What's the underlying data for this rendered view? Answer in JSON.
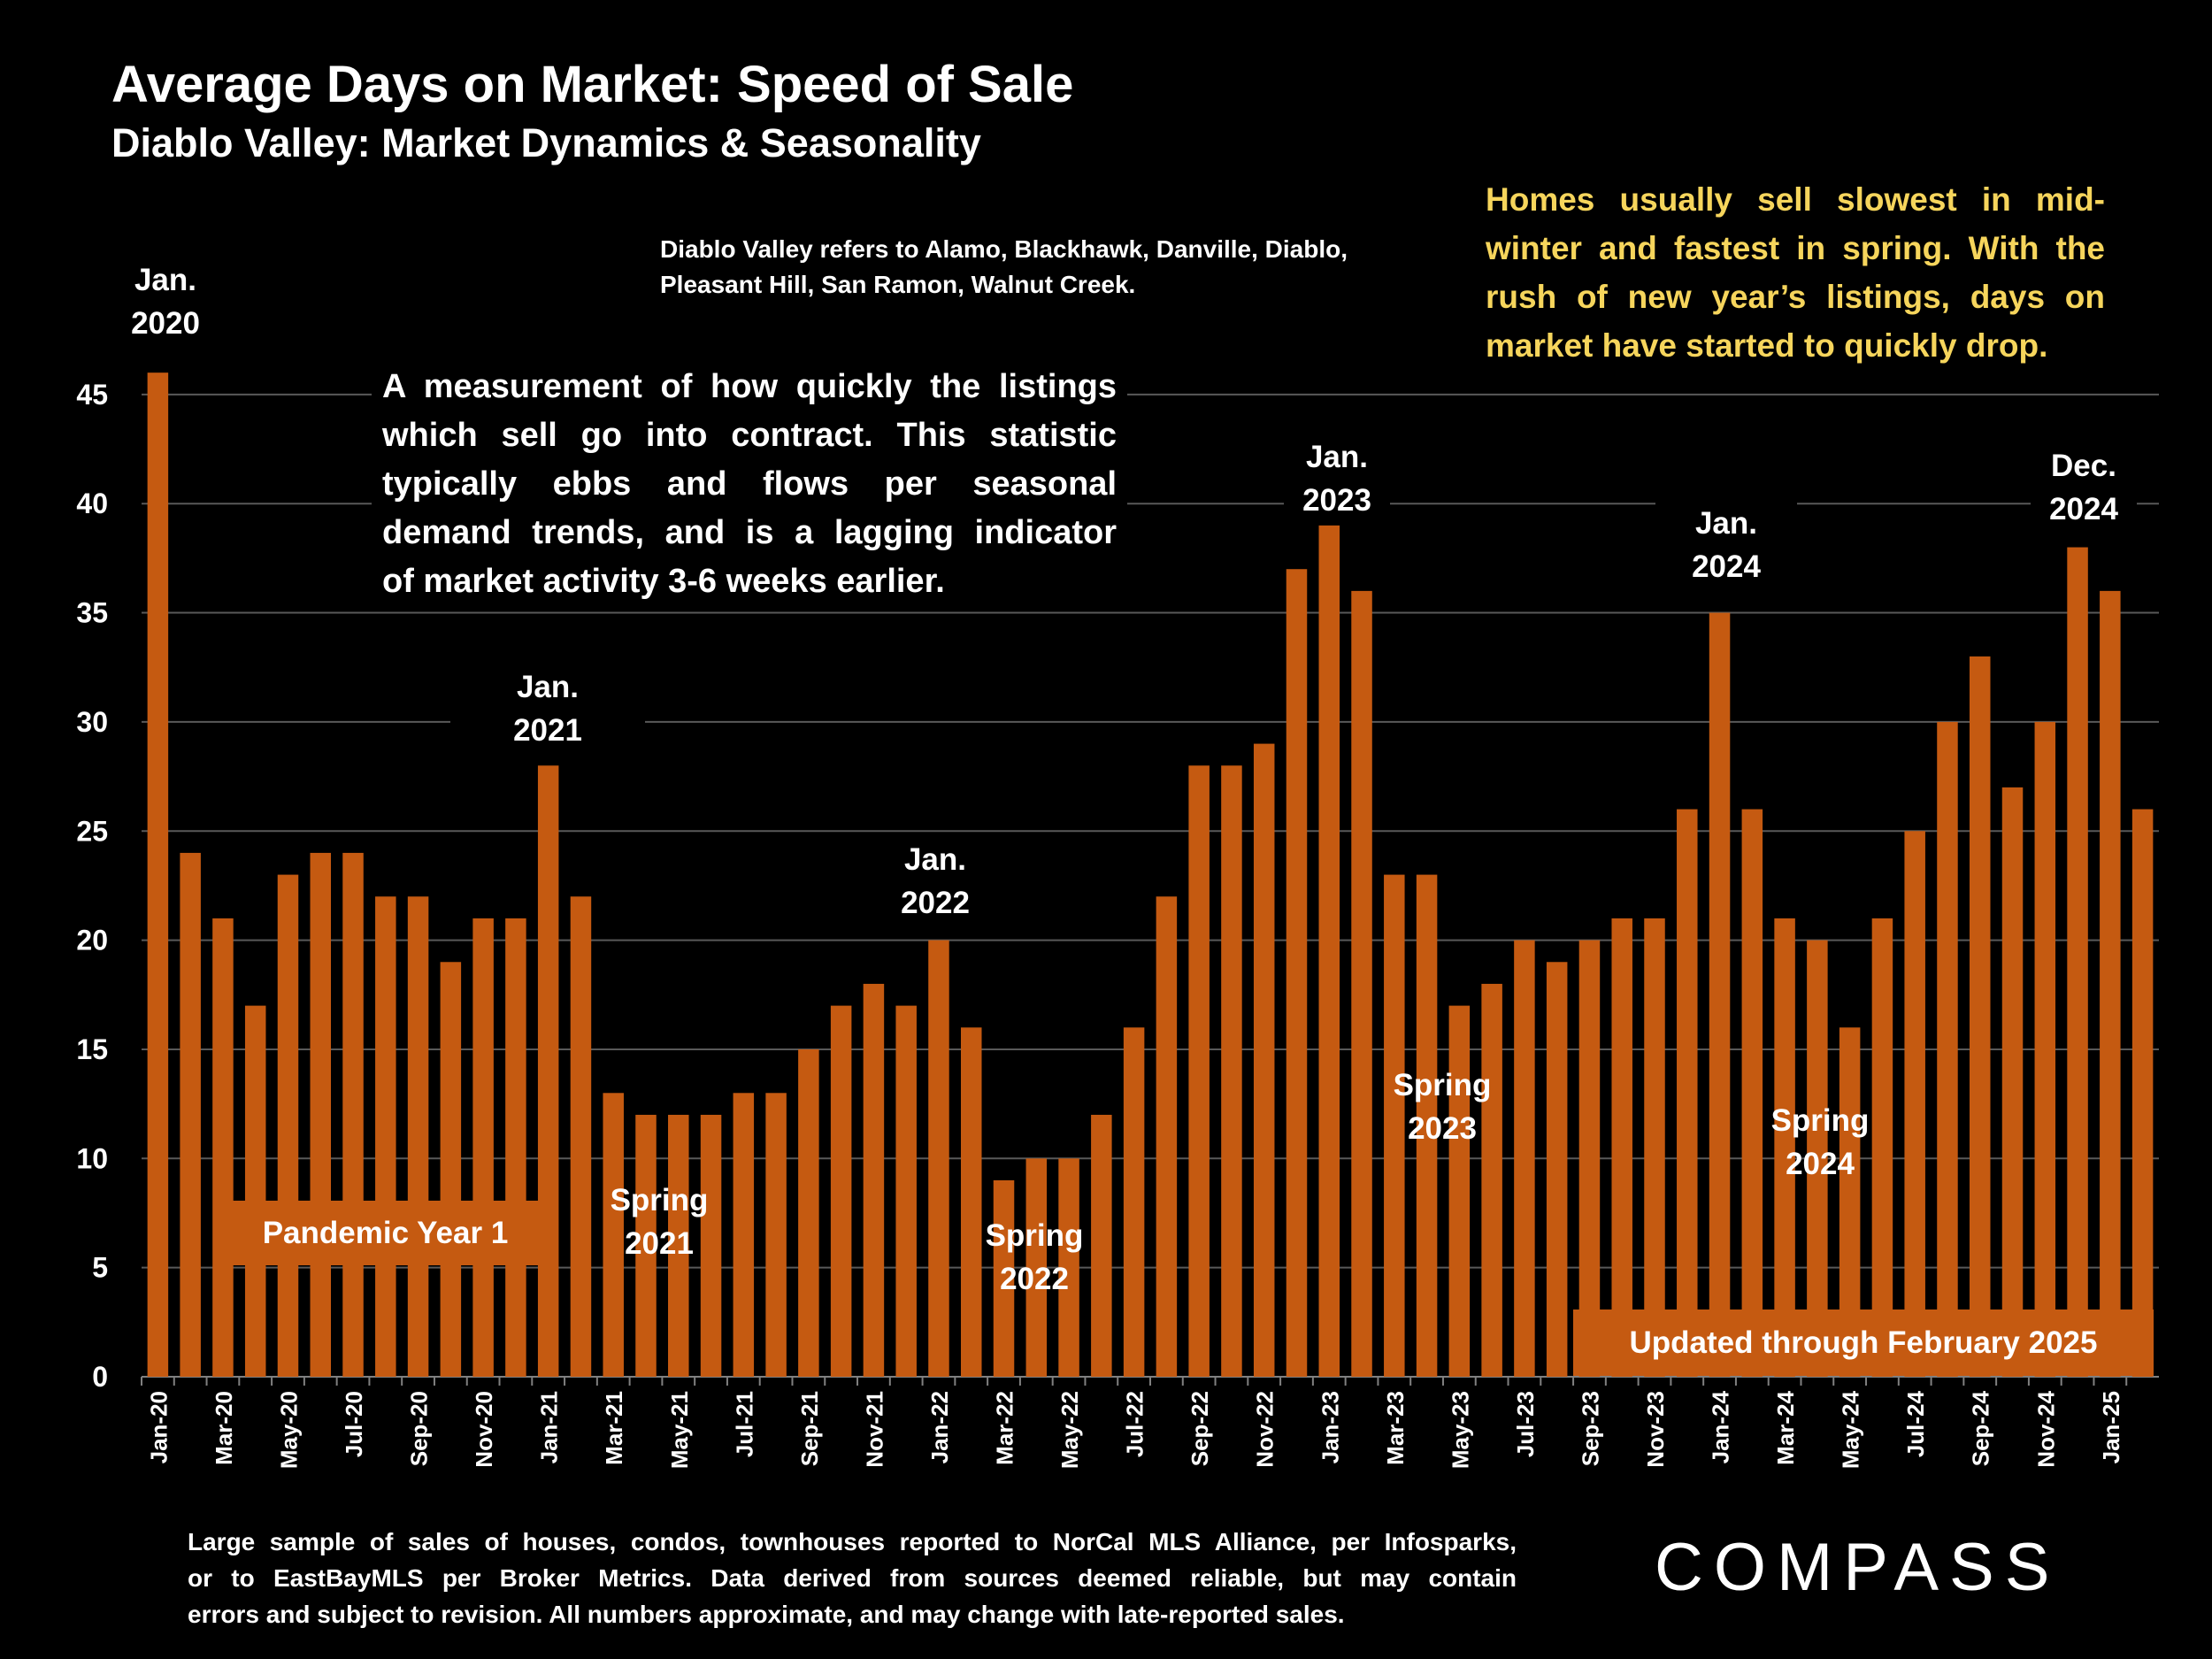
{
  "header": {
    "title": "Average Days on Market:  Speed of Sale",
    "subtitle": "Diablo Valley: Market Dynamics & Seasonality"
  },
  "note": "Diablo Valley refers to Alamo, Blackhawk, Danville, Diablo, Pleasant Hill, San Ramon, Walnut Creek.",
  "callout": [
    "Homes usually sell slowest in mid-",
    "winter and fastest in spring. With the",
    "rush of new year’s listings, days on",
    "market have started to quickly drop."
  ],
  "description": [
    "A measurement of how quickly the listings",
    "which sell go into contract. This statistic",
    "typically ebbs and flows per seasonal",
    "demand trends, and is a lagging indicator",
    "of market activity 3-6 weeks earlier."
  ],
  "annotations": {
    "jan2020": [
      "Jan.",
      "2020"
    ],
    "jan2021": [
      "Jan.",
      "2021"
    ],
    "jan2022": [
      "Jan.",
      "2022"
    ],
    "jan2023": [
      "Jan.",
      "2023"
    ],
    "jan2024": [
      "Jan.",
      "2024"
    ],
    "dec2024": [
      "Dec.",
      "2024"
    ],
    "spring2021": [
      "Spring",
      "2021"
    ],
    "spring2022": [
      "Spring",
      "2022"
    ],
    "spring2023": [
      "Spring",
      "2023"
    ],
    "spring2024": [
      "Spring",
      "2024"
    ],
    "pandemic": "Pandemic Year 1",
    "updated": "Updated through February 2025"
  },
  "footer": [
    "Large sample of sales of houses, condos, townhouses reported to NorCal MLS Alliance, per Infosparks,",
    "or to EastBayMLS per Broker Metrics. Data derived from sources deemed reliable, but may contain",
    "errors and subject to revision. All numbers approximate, and may change with late-reported sales."
  ],
  "logo": "COMPASS",
  "colors": {
    "bar": "#c55a11",
    "grid": "#595959",
    "callout": "#f6d55c"
  },
  "chart_data": {
    "type": "bar",
    "title": "Average Days on Market:  Speed of Sale",
    "xlabel": "",
    "ylabel": "",
    "ylim": [
      0,
      47
    ],
    "yticks": [
      0,
      5,
      10,
      15,
      20,
      25,
      30,
      35,
      40,
      45
    ],
    "grid": true,
    "categories": [
      "Jan-20",
      "Feb-20",
      "Mar-20",
      "Apr-20",
      "May-20",
      "Jun-20",
      "Jul-20",
      "Aug-20",
      "Sep-20",
      "Oct-20",
      "Nov-20",
      "Dec-20",
      "Jan-21",
      "Feb-21",
      "Mar-21",
      "Apr-21",
      "May-21",
      "Jun-21",
      "Jul-21",
      "Aug-21",
      "Sep-21",
      "Oct-21",
      "Nov-21",
      "Dec-21",
      "Jan-22",
      "Feb-22",
      "Mar-22",
      "Apr-22",
      "May-22",
      "Jun-22",
      "Jul-22",
      "Aug-22",
      "Sep-22",
      "Oct-22",
      "Nov-22",
      "Dec-22",
      "Jan-23",
      "Feb-23",
      "Mar-23",
      "Apr-23",
      "May-23",
      "Jun-23",
      "Jul-23",
      "Aug-23",
      "Sep-23",
      "Oct-23",
      "Nov-23",
      "Dec-23",
      "Jan-24",
      "Feb-24",
      "Mar-24",
      "Apr-24",
      "May-24",
      "Jun-24",
      "Jul-24",
      "Aug-24",
      "Sep-24",
      "Oct-24",
      "Nov-24",
      "Dec-24",
      "Jan-25",
      "Feb-25"
    ],
    "values": [
      46,
      24,
      21,
      17,
      23,
      24,
      24,
      22,
      22,
      19,
      21,
      21,
      28,
      22,
      13,
      12,
      12,
      12,
      13,
      13,
      15,
      17,
      18,
      17,
      20,
      16,
      9,
      10,
      10,
      12,
      16,
      22,
      28,
      28,
      29,
      37,
      39,
      36,
      23,
      23,
      17,
      18,
      20,
      19,
      20,
      21,
      21,
      26,
      35,
      26,
      21,
      20,
      16,
      21,
      25,
      30,
      33,
      27,
      30,
      38,
      36,
      26
    ]
  }
}
